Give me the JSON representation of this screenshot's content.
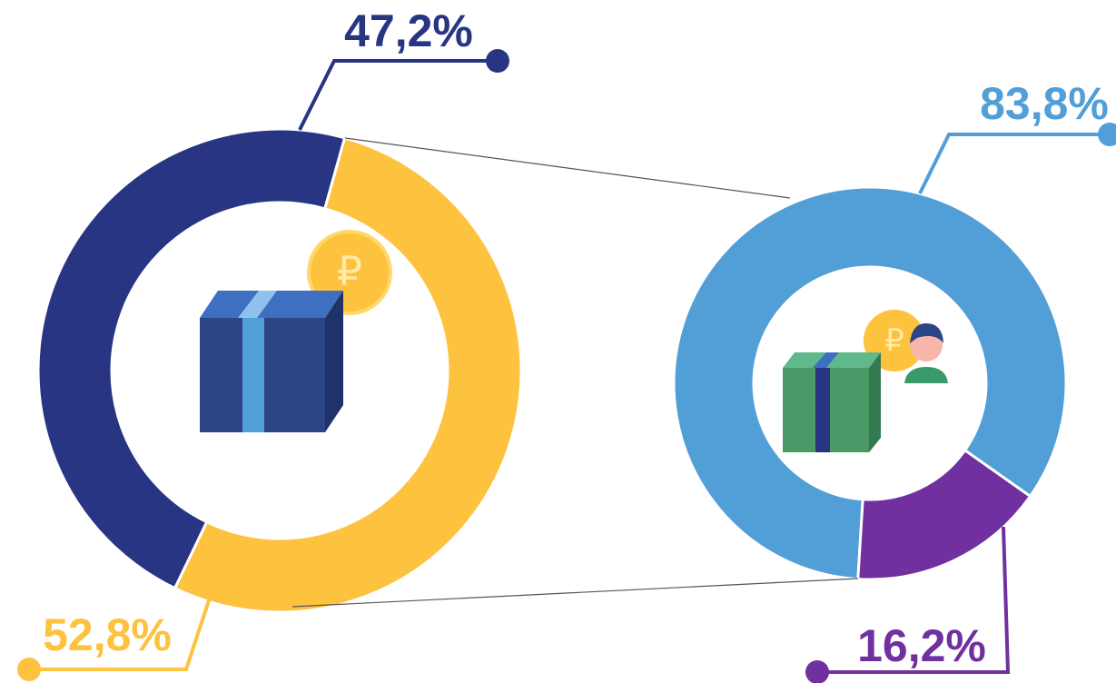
{
  "chart_data": [
    {
      "type": "donut",
      "values": [
        47.2,
        52.8
      ],
      "value_labels": [
        "47,2%",
        "52,8%"
      ],
      "colors": [
        "#283583",
        "#fdc23e"
      ]
    },
    {
      "type": "donut",
      "values": [
        83.8,
        16.2
      ],
      "value_labels": [
        "83,8%",
        "16,2%"
      ],
      "colors": [
        "#529fd7",
        "#7030a0"
      ]
    }
  ]
}
